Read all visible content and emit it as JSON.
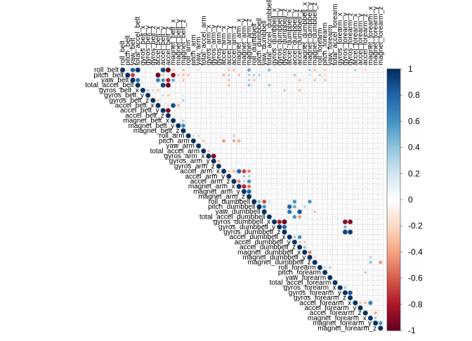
{
  "chart_data": {
    "type": "heatmap",
    "variant": "upper-triangle correlation plot (circle glyphs, size and color = r)",
    "title": "",
    "xlabel": "",
    "ylabel": "",
    "variables": [
      "roll_belt",
      "pitch_belt",
      "yaw_belt",
      "total_accel_belt",
      "gyros_belt_x",
      "gyros_belt_y",
      "gyros_belt_z",
      "accel_belt_x",
      "accel_belt_y",
      "accel_belt_z",
      "magnet_belt_x",
      "magnet_belt_y",
      "magnet_belt_z",
      "roll_arm",
      "pitch_arm",
      "yaw_arm",
      "total_accel_arm",
      "gyros_arm_x",
      "gyros_arm_y",
      "gyros_arm_z",
      "accel_arm_x",
      "accel_arm_y",
      "accel_arm_z",
      "magnet_arm_x",
      "magnet_arm_y",
      "magnet_arm_z",
      "roll_dumbbell",
      "pitch_dumbbell",
      "yaw_dumbbell",
      "total_accel_dumbbell",
      "gyros_dumbbell_x",
      "gyros_dumbbell_y",
      "gyros_dumbbell_z",
      "accel_dumbbell_x",
      "accel_dumbbell_y",
      "accel_dumbbell_z",
      "magnet_dumbbell_x",
      "magnet_dumbbell_y",
      "magnet_dumbbell_z",
      "roll_forearm",
      "pitch_forearm",
      "yaw_forearm",
      "total_accel_forearm",
      "gyros_forearm_x",
      "gyros_forearm_y",
      "gyros_forearm_z",
      "accel_forearm_x",
      "accel_forearm_y",
      "accel_forearm_z",
      "magnet_forearm_x",
      "magnet_forearm_y",
      "magnet_forearm_z"
    ],
    "correlations_estimated": [
      [
        "roll_belt",
        "pitch_belt",
        -0.22
      ],
      [
        "roll_belt",
        "yaw_belt",
        0.82
      ],
      [
        "roll_belt",
        "total_accel_belt",
        0.98
      ],
      [
        "roll_belt",
        "accel_belt_y",
        0.92
      ],
      [
        "roll_belt",
        "accel_belt_z",
        -0.99
      ],
      [
        "roll_belt",
        "magnet_belt_x",
        -0.3
      ],
      [
        "roll_belt",
        "magnet_belt_z",
        -0.3
      ],
      [
        "roll_belt",
        "yaw_arm",
        0.2
      ],
      [
        "roll_belt",
        "accel_arm_y",
        -0.3
      ],
      [
        "roll_belt",
        "accel_arm_z",
        -0.3
      ],
      [
        "roll_belt",
        "magnet_arm_z",
        0.5
      ],
      [
        "roll_belt",
        "total_accel_dumbbell",
        0.42
      ],
      [
        "roll_belt",
        "magnet_dumbbell_y",
        0.3
      ],
      [
        "roll_belt",
        "magnet_dumbbell_z",
        -0.3
      ],
      [
        "roll_belt",
        "pitch_forearm",
        -0.25
      ],
      [
        "roll_belt",
        "accel_forearm_x",
        0.3
      ],
      [
        "roll_belt",
        "accel_forearm_z",
        -0.25
      ],
      [
        "pitch_belt",
        "yaw_belt",
        -0.7
      ],
      [
        "pitch_belt",
        "total_accel_belt",
        -0.14
      ],
      [
        "pitch_belt",
        "accel_belt_x",
        -0.97
      ],
      [
        "pitch_belt",
        "accel_belt_y",
        -0.3
      ],
      [
        "pitch_belt",
        "accel_belt_z",
        0.21
      ],
      [
        "pitch_belt",
        "magnet_belt_x",
        -0.88
      ],
      [
        "pitch_belt",
        "magnet_belt_y",
        -0.3
      ],
      [
        "pitch_belt",
        "magnet_belt_z",
        -0.3
      ],
      [
        "pitch_belt",
        "roll_arm",
        -0.3
      ],
      [
        "pitch_belt",
        "accel_arm_x",
        -0.35
      ],
      [
        "pitch_belt",
        "accel_arm_y",
        0.3
      ],
      [
        "pitch_belt",
        "magnet_arm_x",
        -0.3
      ],
      [
        "pitch_belt",
        "magnet_arm_z",
        0.3
      ],
      [
        "pitch_belt",
        "roll_dumbbell",
        0.3
      ],
      [
        "pitch_belt",
        "pitch_dumbbell",
        0.3
      ],
      [
        "pitch_belt",
        "accel_dumbbell_y",
        0.35
      ],
      [
        "pitch_belt",
        "magnet_dumbbell_y",
        0.25
      ],
      [
        "pitch_belt",
        "roll_forearm",
        0.3
      ],
      [
        "pitch_belt",
        "pitch_forearm",
        -0.25
      ],
      [
        "yaw_belt",
        "total_accel_belt",
        0.76
      ],
      [
        "yaw_belt",
        "accel_belt_x",
        0.71
      ],
      [
        "yaw_belt",
        "accel_belt_y",
        0.6
      ],
      [
        "yaw_belt",
        "accel_belt_z",
        -0.78
      ],
      [
        "yaw_belt",
        "magnet_belt_x",
        0.5
      ],
      [
        "yaw_belt",
        "magnet_belt_z",
        -0.3
      ],
      [
        "yaw_belt",
        "accel_arm_y",
        -0.3
      ],
      [
        "yaw_belt",
        "magnet_arm_z",
        0.3
      ],
      [
        "yaw_belt",
        "roll_dumbbell",
        -0.3
      ],
      [
        "yaw_belt",
        "accel_dumbbell_z",
        -0.3
      ],
      [
        "yaw_belt",
        "magnet_dumbbell_z",
        -0.3
      ],
      [
        "yaw_belt",
        "pitch_forearm",
        -0.3
      ],
      [
        "total_accel_belt",
        "accel_belt_y",
        0.93
      ],
      [
        "total_accel_belt",
        "accel_belt_z",
        -0.97
      ],
      [
        "total_accel_belt",
        "accel_arm_y",
        -0.3
      ],
      [
        "total_accel_belt",
        "magnet_arm_z",
        0.4
      ],
      [
        "total_accel_belt",
        "total_accel_dumbbell",
        0.35
      ],
      [
        "gyros_belt_x",
        "gyros_belt_y",
        0.34
      ],
      [
        "gyros_belt_x",
        "gyros_belt_z",
        -0.26
      ],
      [
        "gyros_belt_x",
        "accel_belt_x",
        -0.3
      ],
      [
        "gyros_belt_x",
        "gyros_dumbbell_z",
        0.3
      ],
      [
        "gyros_belt_x",
        "accel_dumbbell_z",
        -0.3
      ],
      [
        "gyros_belt_y",
        "accel_belt_y",
        0.26
      ],
      [
        "gyros_belt_y",
        "accel_belt_z",
        -0.28
      ],
      [
        "gyros_belt_z",
        "accel_belt_x",
        -0.3
      ],
      [
        "gyros_belt_z",
        "magnet_belt_z",
        0.3
      ],
      [
        "accel_belt_x",
        "magnet_belt_x",
        0.89
      ],
      [
        "accel_belt_x",
        "accel_belt_z",
        -0.25
      ],
      [
        "accel_belt_x",
        "magnet_belt_y",
        -0.35
      ],
      [
        "accel_belt_y",
        "accel_belt_z",
        -0.93
      ],
      [
        "magnet_belt_x",
        "magnet_belt_z",
        0.3
      ],
      [
        "magnet_belt_y",
        "magnet_belt_z",
        0.65
      ],
      [
        "roll_arm",
        "pitch_arm",
        -0.25
      ],
      [
        "roll_arm",
        "yaw_arm",
        0.25
      ],
      [
        "roll_arm",
        "accel_arm_z",
        0.3
      ],
      [
        "pitch_arm",
        "total_accel_arm",
        -0.3
      ],
      [
        "pitch_arm",
        "accel_arm_x",
        -0.45
      ],
      [
        "pitch_arm",
        "accel_arm_z",
        -0.4
      ],
      [
        "pitch_arm",
        "magnet_arm_x",
        -0.4
      ],
      [
        "total_accel_arm",
        "gyros_arm_x",
        -0.3
      ],
      [
        "gyros_arm_x",
        "gyros_arm_y",
        -0.92
      ],
      [
        "gyros_arm_y",
        "gyros_arm_z",
        -0.35
      ],
      [
        "accel_arm_x",
        "accel_arm_y",
        -0.3
      ],
      [
        "accel_arm_x",
        "accel_arm_z",
        -0.35
      ],
      [
        "accel_arm_x",
        "magnet_arm_x",
        0.81
      ],
      [
        "accel_arm_x",
        "magnet_arm_y",
        -0.68
      ],
      [
        "accel_arm_x",
        "magnet_arm_z",
        -0.5
      ],
      [
        "accel_arm_y",
        "magnet_arm_y",
        0.35
      ],
      [
        "accel_arm_y",
        "magnet_arm_z",
        0.3
      ],
      [
        "accel_arm_z",
        "magnet_arm_x",
        -0.5
      ],
      [
        "accel_arm_z",
        "magnet_arm_y",
        0.3
      ],
      [
        "accel_arm_z",
        "magnet_arm_z",
        0.6
      ],
      [
        "magnet_arm_x",
        "magnet_arm_y",
        -0.78
      ],
      [
        "magnet_arm_x",
        "magnet_arm_z",
        -0.55
      ],
      [
        "magnet_arm_y",
        "magnet_arm_z",
        0.79
      ],
      [
        "roll_dumbbell",
        "pitch_dumbbell",
        0.45
      ],
      [
        "roll_dumbbell",
        "yaw_dumbbell",
        -0.65
      ],
      [
        "roll_dumbbell",
        "total_accel_dumbbell",
        0.25
      ],
      [
        "roll_dumbbell",
        "accel_dumbbell_y",
        0.6
      ],
      [
        "roll_dumbbell",
        "magnet_dumbbell_y",
        0.6
      ],
      [
        "pitch_dumbbell",
        "yaw_dumbbell",
        0.6
      ],
      [
        "pitch_dumbbell",
        "accel_dumbbell_x",
        0.81
      ],
      [
        "pitch_dumbbell",
        "accel_dumbbell_y",
        0.5
      ],
      [
        "pitch_dumbbell",
        "magnet_dumbbell_x",
        0.3
      ],
      [
        "yaw_dumbbell",
        "accel_dumbbell_x",
        0.75
      ],
      [
        "yaw_dumbbell",
        "accel_dumbbell_z",
        0.85
      ],
      [
        "yaw_dumbbell",
        "magnet_dumbbell_z",
        -0.3
      ],
      [
        "total_accel_dumbbell",
        "accel_dumbbell_y",
        0.6
      ],
      [
        "total_accel_dumbbell",
        "accel_dumbbell_z",
        -0.45
      ],
      [
        "gyros_dumbbell_x",
        "gyros_dumbbell_y",
        -0.82
      ],
      [
        "gyros_dumbbell_x",
        "gyros_dumbbell_z",
        -0.98
      ],
      [
        "gyros_dumbbell_x",
        "gyros_forearm_y",
        -0.91
      ],
      [
        "gyros_dumbbell_x",
        "gyros_forearm_z",
        -0.92
      ],
      [
        "gyros_dumbbell_y",
        "gyros_dumbbell_z",
        0.79
      ],
      [
        "gyros_dumbbell_y",
        "gyros_forearm_y",
        0.45
      ],
      [
        "gyros_dumbbell_z",
        "gyros_forearm_y",
        0.93
      ],
      [
        "gyros_dumbbell_z",
        "gyros_forearm_z",
        0.95
      ],
      [
        "accel_dumbbell_x",
        "accel_dumbbell_y",
        0.35
      ],
      [
        "accel_dumbbell_x",
        "accel_dumbbell_z",
        0.6
      ],
      [
        "accel_dumbbell_y",
        "accel_dumbbell_z",
        -0.3
      ],
      [
        "accel_dumbbell_y",
        "magnet_dumbbell_x",
        -0.3
      ],
      [
        "accel_dumbbell_z",
        "magnet_dumbbell_x",
        0.4
      ],
      [
        "magnet_dumbbell_x",
        "magnet_dumbbell_y",
        -0.5
      ],
      [
        "magnet_dumbbell_y",
        "magnet_dumbbell_z",
        -0.25
      ],
      [
        "magnet_dumbbell_z",
        "magnet_forearm_x",
        0.4
      ],
      [
        "magnet_dumbbell_z",
        "magnet_forearm_z",
        -0.45
      ],
      [
        "magnet_dumbbell_y",
        "magnet_forearm_x",
        0.3
      ],
      [
        "roll_forearm",
        "pitch_forearm",
        0.25
      ],
      [
        "roll_forearm",
        "yaw_forearm",
        0.3
      ],
      [
        "pitch_forearm",
        "accel_forearm_z",
        0.3
      ],
      [
        "gyros_forearm_x",
        "gyros_forearm_y",
        0.35
      ],
      [
        "gyros_forearm_y",
        "gyros_forearm_z",
        0.85
      ],
      [
        "accel_forearm_x",
        "magnet_forearm_x",
        0.7
      ],
      [
        "accel_forearm_x",
        "accel_forearm_y",
        -0.3
      ],
      [
        "accel_forearm_x",
        "accel_forearm_z",
        -0.35
      ],
      [
        "accel_forearm_z",
        "magnet_forearm_y",
        -0.4
      ],
      [
        "magnet_forearm_x",
        "magnet_forearm_y",
        0.35
      ],
      [
        "magnet_forearm_y",
        "magnet_forearm_z",
        0.6
      ]
    ],
    "default_abs_correlation": 0.04,
    "diagonal_value": 1,
    "colorbar": {
      "range": [
        -1,
        1
      ],
      "tick_labels": [
        "-1",
        "-0.8",
        "-0.6",
        "-0.4",
        "-0.2",
        "0",
        "0.2",
        "0.4",
        "0.6",
        "0.8",
        "1"
      ],
      "colors": [
        "#67001f",
        "#b2182b",
        "#d6604d",
        "#f4a582",
        "#fddbc7",
        "#ffffff",
        "#d1e5f0",
        "#92c5de",
        "#4393c3",
        "#2166ac",
        "#053061"
      ]
    },
    "legend_placement": "right",
    "grid": true
  }
}
